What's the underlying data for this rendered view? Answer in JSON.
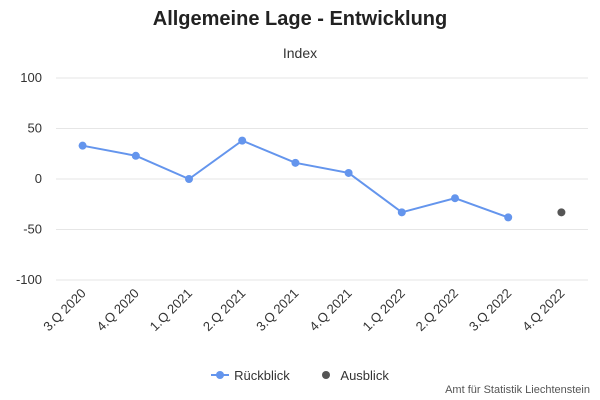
{
  "chart_data": {
    "type": "line",
    "title": "Allgemeine Lage - Entwicklung",
    "subtitle": "Index",
    "categories": [
      "3.Q 2020",
      "4.Q 2020",
      "1.Q 2021",
      "2.Q 2021",
      "3.Q 2021",
      "4.Q 2021",
      "1.Q 2022",
      "2.Q 2022",
      "3.Q 2022",
      "4.Q 2022"
    ],
    "ylim": [
      -100,
      100
    ],
    "yticks": [
      100,
      50,
      0,
      -50,
      -100
    ],
    "grid": true,
    "legend_placement": "bottom",
    "series": [
      {
        "name": "Rückblick",
        "color": "#6495ED",
        "line": true,
        "values": [
          33,
          23,
          0,
          38,
          16,
          6,
          -33,
          -19,
          -38,
          null
        ]
      },
      {
        "name": "Ausblick",
        "color": "#555555",
        "line": false,
        "values": [
          null,
          null,
          null,
          null,
          null,
          null,
          null,
          null,
          null,
          -33
        ]
      }
    ]
  },
  "credit": "Amt für Statistik Liechtenstein"
}
